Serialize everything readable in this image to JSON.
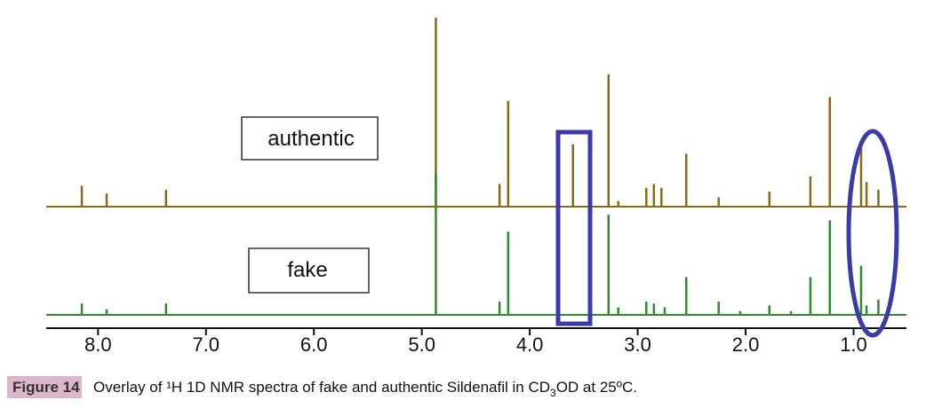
{
  "chart_data": {
    "type": "spectrum",
    "xlim": [
      8.48,
      0.51
    ],
    "xticks": [
      {
        "value": 8,
        "label": "8.0"
      },
      {
        "value": 7,
        "label": "7.0"
      },
      {
        "value": 6,
        "label": "6.0"
      },
      {
        "value": 5,
        "label": "5.0"
      },
      {
        "value": 4,
        "label": "4.0"
      },
      {
        "value": 3,
        "label": "3.0"
      },
      {
        "value": 2,
        "label": "2.0"
      },
      {
        "value": 1,
        "label": "1.0"
      }
    ],
    "ylim": [
      0,
      100
    ],
    "series": [
      {
        "name": "authentic",
        "color": "#8a6a14",
        "x": [
          8.15,
          7.92,
          7.37,
          4.87,
          4.28,
          4.2,
          3.6,
          3.27,
          3.18,
          2.92,
          2.85,
          2.78,
          2.55,
          2.25,
          1.78,
          1.4,
          1.22,
          0.93,
          0.88,
          0.77
        ],
        "values": [
          11,
          7,
          9,
          100,
          12,
          56,
          33,
          70,
          3,
          10,
          12,
          10,
          28,
          5,
          8,
          16,
          58,
          31,
          13,
          9
        ]
      },
      {
        "name": "fake",
        "color": "#2e8b2e",
        "x": [
          8.15,
          7.92,
          7.37,
          4.87,
          4.28,
          4.2,
          3.27,
          3.18,
          2.92,
          2.85,
          2.75,
          2.55,
          2.25,
          2.05,
          1.78,
          1.58,
          1.4,
          1.22,
          0.93,
          0.88,
          0.77
        ],
        "values": [
          6,
          3,
          6,
          75,
          7,
          44,
          53,
          4,
          7,
          6,
          4,
          20,
          7,
          2,
          5,
          2,
          20,
          50,
          26,
          5,
          8
        ]
      }
    ],
    "caption": {
      "label": "Figure 14",
      "parts": [
        "Overlay of ¹H 1D NMR spectra of fake and authentic Sildenafil in CD",
        "3",
        "OD at 25ºC."
      ]
    }
  }
}
